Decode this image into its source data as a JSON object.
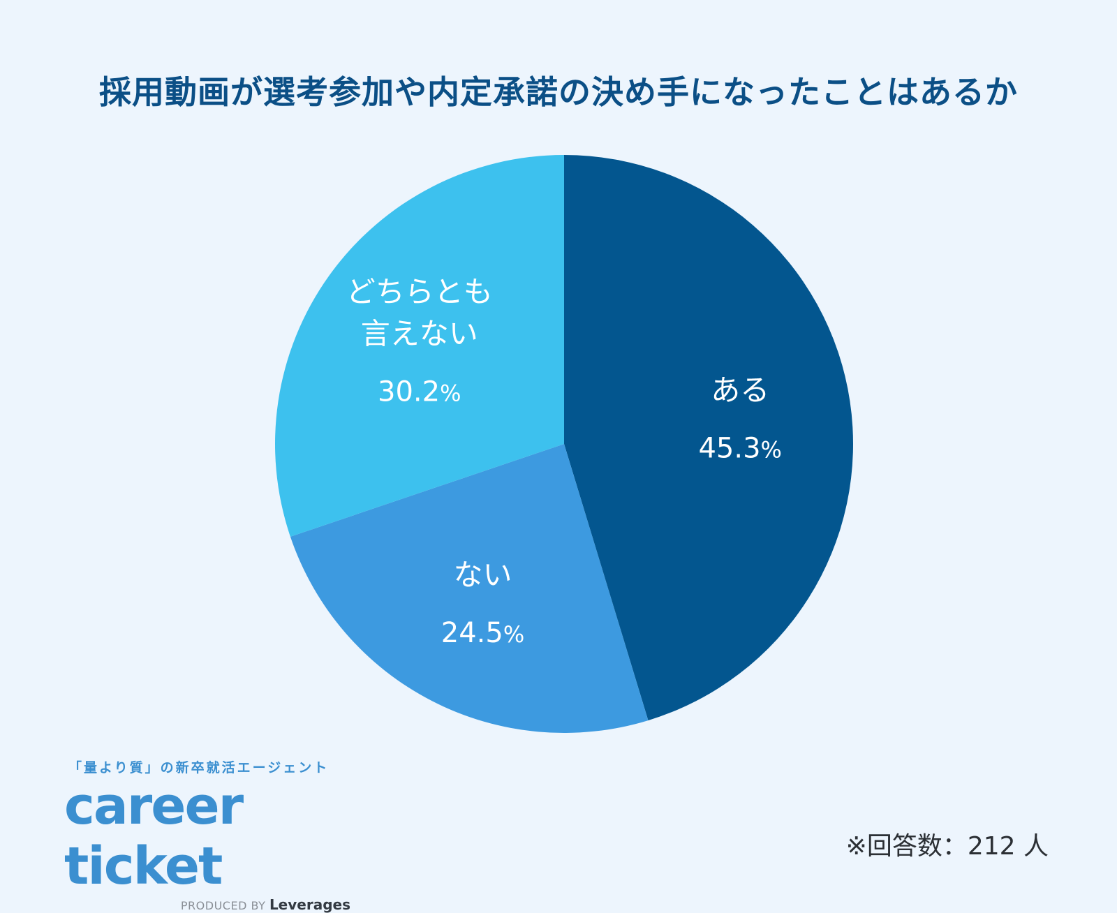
{
  "title": "採用動画が選考参加や内定承諾の決め手になったことはあるか",
  "chart_data": {
    "type": "pie",
    "title": "採用動画が選考参加や内定承諾の決め手になったことはあるか",
    "start_angle_deg": 0,
    "direction": "clockwise",
    "slices": [
      {
        "label": "ある",
        "value": 45.3,
        "display": "45.3",
        "color": "#03568f"
      },
      {
        "label": "ない",
        "value": 24.5,
        "display": "24.5",
        "color": "#3d9ae0"
      },
      {
        "label": "どちらとも\n言えない",
        "value": 30.2,
        "display": "30.2",
        "color": "#3dc1ee"
      }
    ],
    "unit": "%"
  },
  "footnote": "※回答数：212 人",
  "logo": {
    "tagline": "「量より質」の新卒就活エージェント",
    "wordmark": "career ticket",
    "produced_by": "PRODUCED BY",
    "brand": "Leverages"
  }
}
